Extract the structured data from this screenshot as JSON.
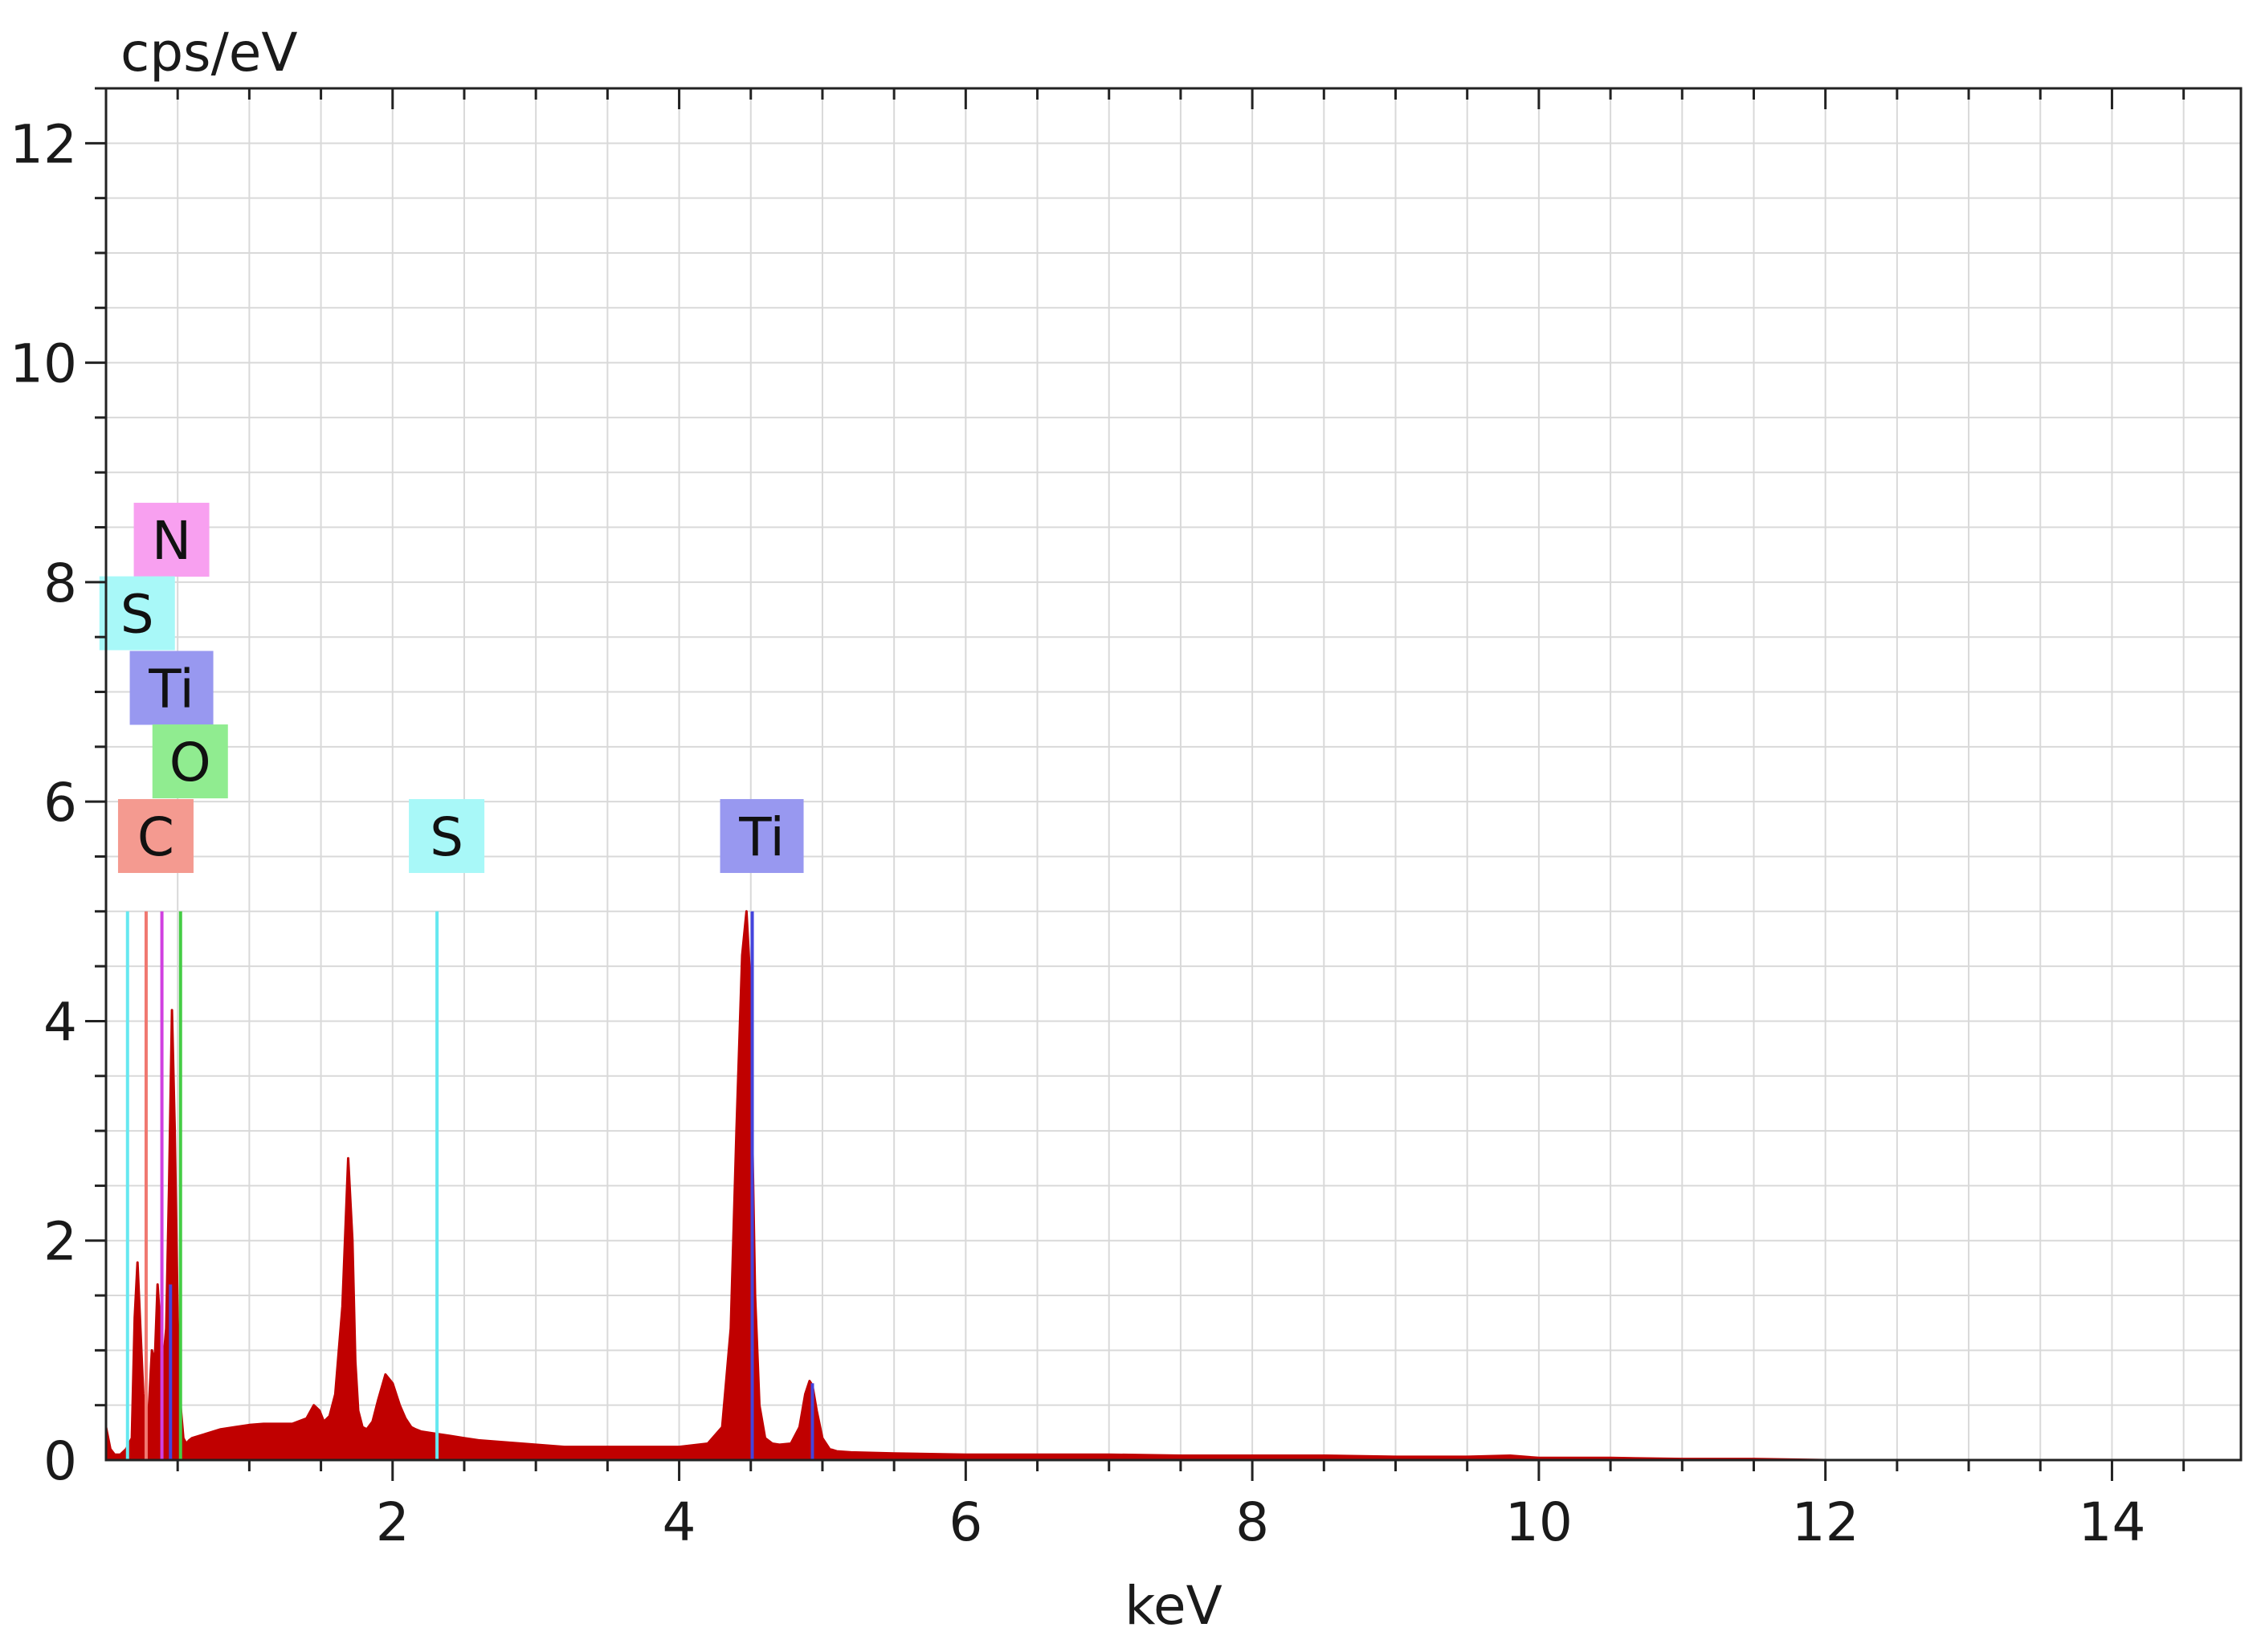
{
  "chart_data": {
    "type": "area",
    "xlabel": "keV",
    "ylabel": "cps/eV",
    "xlim": [
      0,
      14.9
    ],
    "ylim": [
      0,
      12.5
    ],
    "x_ticks": [
      2,
      4,
      6,
      8,
      10,
      12,
      14
    ],
    "x_tick_labels": [
      "2",
      "4",
      "6",
      "8",
      "10",
      "12",
      "14"
    ],
    "y_ticks": [
      0,
      2,
      4,
      6,
      8,
      10,
      12
    ],
    "y_tick_labels": [
      "0",
      "2",
      "4",
      "6",
      "8",
      "10",
      "12"
    ],
    "grid": true,
    "spectrum_color": "#c00000",
    "spectrum": {
      "x": [
        0.0,
        0.03,
        0.06,
        0.1,
        0.14,
        0.18,
        0.2,
        0.22,
        0.24,
        0.26,
        0.28,
        0.3,
        0.32,
        0.34,
        0.36,
        0.38,
        0.4,
        0.42,
        0.44,
        0.46,
        0.48,
        0.5,
        0.52,
        0.54,
        0.56,
        0.58,
        0.6,
        0.65,
        0.7,
        0.8,
        0.9,
        1.0,
        1.1,
        1.2,
        1.3,
        1.4,
        1.45,
        1.49,
        1.52,
        1.56,
        1.6,
        1.65,
        1.69,
        1.72,
        1.74,
        1.76,
        1.79,
        1.82,
        1.86,
        1.9,
        1.95,
        2.0,
        2.05,
        2.09,
        2.13,
        2.16,
        2.2,
        2.25,
        2.3,
        2.4,
        2.5,
        2.6,
        2.8,
        3.0,
        3.2,
        3.4,
        3.6,
        3.8,
        4.0,
        4.2,
        4.3,
        4.36,
        4.4,
        4.44,
        4.47,
        4.49,
        4.51,
        4.53,
        4.56,
        4.6,
        4.65,
        4.7,
        4.78,
        4.84,
        4.88,
        4.91,
        4.93,
        4.96,
        5.0,
        5.05,
        5.1,
        5.2,
        5.5,
        6.0,
        6.5,
        7.0,
        7.5,
        8.0,
        8.5,
        9.0,
        9.5,
        9.8,
        10.0,
        10.5,
        11.0,
        11.5,
        12.0,
        12.5,
        13.0,
        14.0,
        14.9
      ],
      "y": [
        0.3,
        0.1,
        0.05,
        0.05,
        0.1,
        0.2,
        1.3,
        1.8,
        1.2,
        0.6,
        0.35,
        0.5,
        1.0,
        0.9,
        1.6,
        1.2,
        0.9,
        1.2,
        2.5,
        4.1,
        3.0,
        1.3,
        0.5,
        0.2,
        0.15,
        0.18,
        0.2,
        0.22,
        0.24,
        0.28,
        0.3,
        0.32,
        0.33,
        0.33,
        0.33,
        0.38,
        0.5,
        0.45,
        0.35,
        0.4,
        0.6,
        1.4,
        2.75,
        2.0,
        0.9,
        0.45,
        0.3,
        0.28,
        0.35,
        0.55,
        0.78,
        0.7,
        0.5,
        0.38,
        0.3,
        0.28,
        0.26,
        0.25,
        0.24,
        0.22,
        0.2,
        0.18,
        0.16,
        0.14,
        0.12,
        0.12,
        0.12,
        0.12,
        0.12,
        0.15,
        0.3,
        1.2,
        3.0,
        4.6,
        5.0,
        4.5,
        3.0,
        1.5,
        0.5,
        0.2,
        0.15,
        0.14,
        0.15,
        0.3,
        0.6,
        0.72,
        0.68,
        0.45,
        0.2,
        0.1,
        0.08,
        0.07,
        0.06,
        0.05,
        0.05,
        0.05,
        0.04,
        0.04,
        0.04,
        0.03,
        0.03,
        0.04,
        0.02,
        0.02,
        0.01,
        0.01,
        0.0,
        0.0,
        0.0,
        0.0,
        0.0
      ]
    },
    "element_lines": [
      {
        "label": "S",
        "x": 0.15,
        "height": 5.0,
        "color": "#66e8f0",
        "show_label": false
      },
      {
        "label": "C",
        "x": 0.28,
        "height": 5.0,
        "color": "#f07870",
        "show_label": false
      },
      {
        "label": "N",
        "x": 0.39,
        "height": 5.0,
        "color": "#d040e0",
        "show_label": false
      },
      {
        "label": "Ti",
        "x": 0.45,
        "height": 1.6,
        "color": "#4444dd",
        "show_label": false
      },
      {
        "label": "O",
        "x": 0.52,
        "height": 5.0,
        "color": "#44cc44",
        "show_label": false
      },
      {
        "label": "S",
        "x": 2.31,
        "height": 5.0,
        "color": "#66e8f0",
        "show_label": false
      },
      {
        "label": "Ti",
        "x": 4.51,
        "height": 5.0,
        "color": "#4444dd",
        "show_label": false
      },
      {
        "label": "Ti",
        "x": 4.93,
        "height": 0.7,
        "color": "#4444dd",
        "show_label": false
      }
    ],
    "element_labels": [
      {
        "text": "N",
        "x": 0.39,
        "y": 8.05,
        "color": "#f8a0f0"
      },
      {
        "text": "S",
        "x": 0.15,
        "y": 7.38,
        "color": "#a8f8f8"
      },
      {
        "text": "Ti",
        "x": 0.39,
        "y": 6.7,
        "color": "#9898f0"
      },
      {
        "text": "O",
        "x": 0.52,
        "y": 6.03,
        "color": "#90ec90"
      },
      {
        "text": "C",
        "x": 0.28,
        "y": 5.35,
        "color": "#f49a90"
      },
      {
        "text": "S",
        "x": 2.31,
        "y": 5.35,
        "color": "#a8f8f8"
      },
      {
        "text": "Ti",
        "x": 4.51,
        "y": 5.35,
        "color": "#9898f0"
      }
    ]
  }
}
